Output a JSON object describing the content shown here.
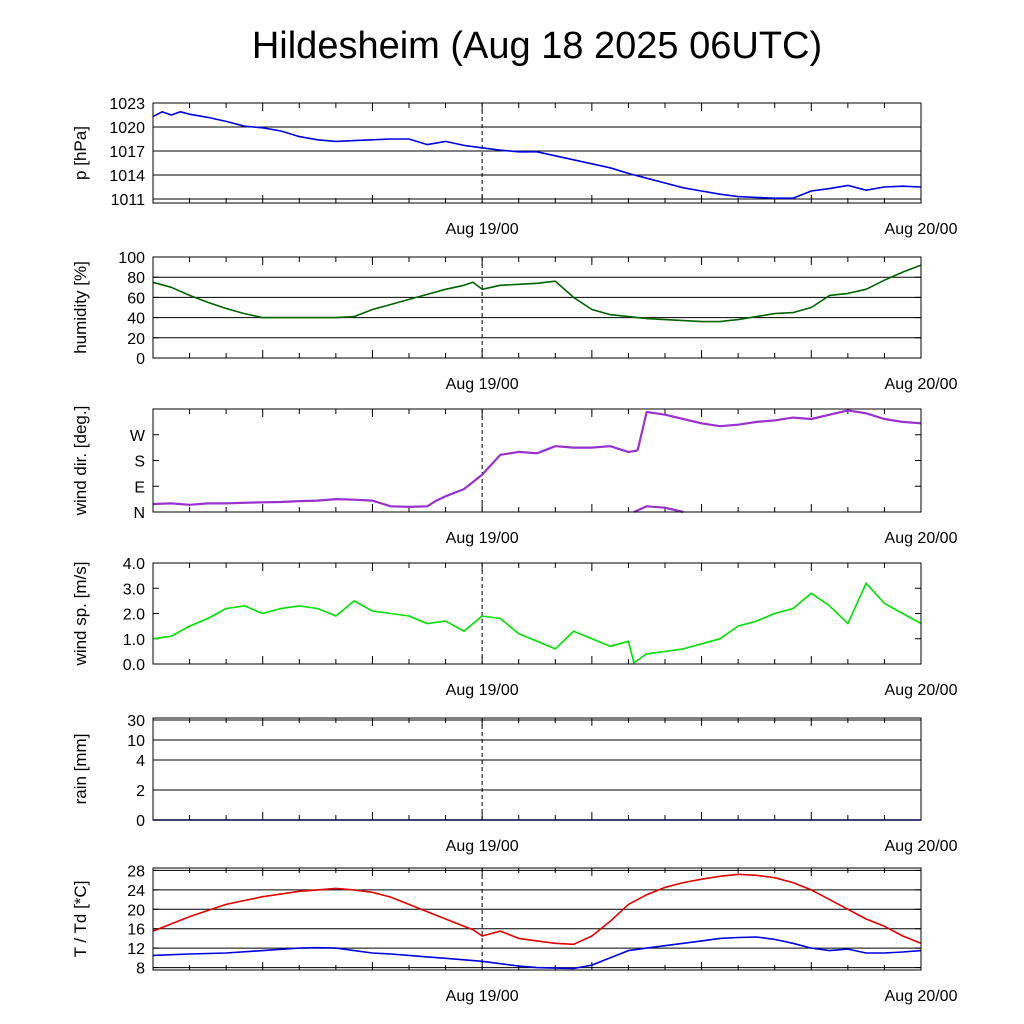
{
  "title": "Hildesheim (Aug 18 2025 06UTC)",
  "x_tick_labels": [
    "Aug 19/00",
    "Aug 20/00"
  ],
  "chart_data": [
    {
      "type": "line",
      "ylabel": "p [hPa]",
      "ylim": [
        1010.5,
        1023
      ],
      "yticks": [
        1023,
        1020,
        1017,
        1014,
        1011
      ],
      "grid": true,
      "series": [
        {
          "color": "#0000e0",
          "x": [
            0,
            0.5,
            1,
            1.5,
            2,
            3,
            4,
            5,
            6,
            7,
            8,
            9,
            10,
            11,
            12,
            13,
            14,
            15,
            16,
            17,
            18,
            19,
            20,
            21,
            22,
            23,
            24,
            25,
            26,
            27,
            28,
            29,
            30,
            31,
            32,
            33,
            34,
            35,
            36,
            37,
            38,
            39,
            40,
            41,
            42
          ],
          "y": [
            1021.3,
            1021.9,
            1021.5,
            1021.9,
            1021.6,
            1021.2,
            1020.7,
            1020.1,
            1019.9,
            1019.5,
            1018.8,
            1018.4,
            1018.2,
            1018.3,
            1018.4,
            1018.5,
            1018.5,
            1017.8,
            1018.2,
            1017.7,
            1017.4,
            1017.1,
            1016.9,
            1016.9,
            1016.4,
            1015.9,
            1015.4,
            1014.9,
            1014.2,
            1013.6,
            1013.0,
            1012.4,
            1012.0,
            1011.6,
            1011.3,
            1011.2,
            1011.1,
            1011.1,
            1012.0,
            1012.3,
            1012.7,
            1012.1,
            1012.5,
            1012.6,
            1012.5
          ]
        }
      ]
    },
    {
      "type": "line",
      "ylabel": "humidity [%]",
      "ylim": [
        0,
        100
      ],
      "yticks": [
        100,
        80,
        60,
        40,
        20,
        0
      ],
      "grid": true,
      "series": [
        {
          "color": "#006400",
          "x": [
            0,
            1,
            2,
            3,
            4,
            5,
            6,
            8,
            10,
            11,
            12,
            13,
            14,
            15,
            16,
            17,
            17.5,
            18,
            19,
            20,
            21,
            22,
            23,
            24,
            25,
            26,
            27,
            28,
            29,
            30,
            31,
            32,
            33,
            34,
            35,
            36,
            37,
            38,
            39,
            40,
            41,
            42
          ],
          "y": [
            75,
            70,
            62,
            55,
            49,
            44,
            40,
            40,
            40,
            41,
            48,
            53,
            58,
            63,
            68,
            72,
            75,
            68,
            72,
            73,
            74,
            76,
            60,
            48,
            43,
            41,
            39,
            38,
            37,
            36,
            36,
            38,
            41,
            44,
            45,
            50,
            62,
            64,
            68,
            77,
            85,
            92
          ]
        }
      ]
    },
    {
      "type": "scatter",
      "ylabel": "wind dir. [deg.]",
      "ylim": [
        0,
        360
      ],
      "yticks": [
        0,
        90,
        180,
        270
      ],
      "ytick_labels": [
        "N",
        "E",
        "S",
        "W"
      ],
      "grid": false,
      "series": [
        {
          "color": "#9932cc",
          "x": [
            0,
            1,
            2,
            3,
            4,
            5,
            6,
            7,
            8,
            9,
            10,
            11,
            12,
            13,
            14,
            15,
            15.5,
            16,
            17,
            18,
            19,
            20,
            21,
            22,
            23,
            24,
            25,
            26,
            26.5
          ],
          "y": [
            28,
            30,
            25,
            30,
            30,
            32,
            34,
            35,
            38,
            40,
            45,
            43,
            40,
            20,
            18,
            20,
            40,
            55,
            80,
            130,
            200,
            210,
            205,
            230,
            225,
            225,
            230,
            210,
            215
          ]
        },
        {
          "color": "#9932cc",
          "x": [
            26.5,
            27,
            28,
            29,
            30,
            31,
            32,
            33,
            34,
            35,
            36,
            37,
            38,
            39,
            40,
            41,
            42
          ],
          "y": [
            215,
            350,
            340,
            325,
            310,
            300,
            305,
            315,
            320,
            330,
            325,
            340,
            355,
            345,
            325,
            315,
            310
          ]
        },
        {
          "color": "#9932cc",
          "x": [
            26.3,
            27,
            28,
            29
          ],
          "y": [
            0,
            20,
            15,
            0
          ]
        }
      ]
    },
    {
      "type": "line",
      "ylabel": "wind sp. [m/s]",
      "ylim": [
        0,
        4
      ],
      "yticks": [
        0,
        1,
        2,
        3,
        4
      ],
      "ytick_labels": [
        "0.0",
        "1.0",
        "2.0",
        "3.0",
        "4.0"
      ],
      "grid": false,
      "series": [
        {
          "color": "#00e000",
          "x": [
            0,
            1,
            2,
            3,
            4,
            5,
            6,
            7,
            8,
            9,
            10,
            11,
            12,
            13,
            14,
            15,
            16,
            17,
            18,
            19,
            20,
            21,
            22,
            23,
            24,
            25,
            26,
            26.3,
            27,
            28,
            29,
            30,
            31,
            32,
            33,
            34,
            35,
            36,
            37,
            38,
            39,
            40,
            41,
            42
          ],
          "y": [
            1.0,
            1.1,
            1.5,
            1.8,
            2.2,
            2.3,
            2.0,
            2.2,
            2.3,
            2.2,
            1.9,
            2.5,
            2.1,
            2.0,
            1.9,
            1.6,
            1.7,
            1.3,
            1.9,
            1.8,
            1.2,
            0.9,
            0.6,
            1.3,
            1.0,
            0.7,
            0.9,
            0.05,
            0.4,
            0.5,
            0.6,
            0.8,
            1.0,
            1.5,
            1.7,
            2.0,
            2.2,
            2.8,
            2.3,
            1.6,
            3.2,
            2.4,
            2.0,
            1.6
          ]
        }
      ]
    },
    {
      "type": "line",
      "ylabel": "rain [mm]",
      "yticks": [
        0,
        2,
        4,
        10,
        30
      ],
      "grid": true,
      "series": [
        {
          "color": "#0000e0",
          "x": [
            0,
            42
          ],
          "y": [
            0,
            0
          ]
        }
      ]
    },
    {
      "type": "line",
      "ylabel": "T / Td [*C]",
      "ylim": [
        7.5,
        28.5
      ],
      "yticks": [
        28,
        24,
        20,
        16,
        12,
        8
      ],
      "grid": true,
      "series": [
        {
          "color": "#e00000",
          "x": [
            0,
            2,
            4,
            6,
            8,
            9,
            10,
            11,
            12,
            13,
            14,
            15,
            16,
            17,
            17.5,
            18,
            19,
            20,
            21,
            22,
            23,
            24,
            25,
            26,
            27,
            28,
            29,
            30,
            31,
            32,
            33,
            34,
            35,
            36,
            37,
            38,
            39,
            40,
            41,
            42
          ],
          "y": [
            15.5,
            18.5,
            21.0,
            22.6,
            23.7,
            24.0,
            24.3,
            24.0,
            23.5,
            22.5,
            21.0,
            19.5,
            18.0,
            16.5,
            15.8,
            14.5,
            15.5,
            14.0,
            13.5,
            13.0,
            12.8,
            14.5,
            17.5,
            21.0,
            23.0,
            24.5,
            25.5,
            26.2,
            26.8,
            27.2,
            27.0,
            26.5,
            25.5,
            24.0,
            22.0,
            20.0,
            18.0,
            16.5,
            14.5,
            13.0
          ]
        },
        {
          "color": "#0000e0",
          "x": [
            0,
            2,
            4,
            6,
            8,
            9,
            10,
            11,
            12,
            13,
            14,
            15,
            16,
            17,
            18,
            19,
            20,
            21,
            22,
            23,
            24,
            25,
            26,
            27,
            28,
            29,
            30,
            31,
            32,
            33,
            34,
            35,
            36,
            37,
            38,
            39,
            40,
            41,
            42
          ],
          "y": [
            10.5,
            10.8,
            11.0,
            11.5,
            12.0,
            12.1,
            12.0,
            11.5,
            11.0,
            10.8,
            10.5,
            10.2,
            9.9,
            9.6,
            9.3,
            8.8,
            8.3,
            8.0,
            7.9,
            7.8,
            8.5,
            10.0,
            11.5,
            12.0,
            12.5,
            13.0,
            13.5,
            14.0,
            14.2,
            14.3,
            13.8,
            13.0,
            12.0,
            11.5,
            11.8,
            11.0,
            11.0,
            11.2,
            11.5
          ]
        }
      ]
    }
  ]
}
